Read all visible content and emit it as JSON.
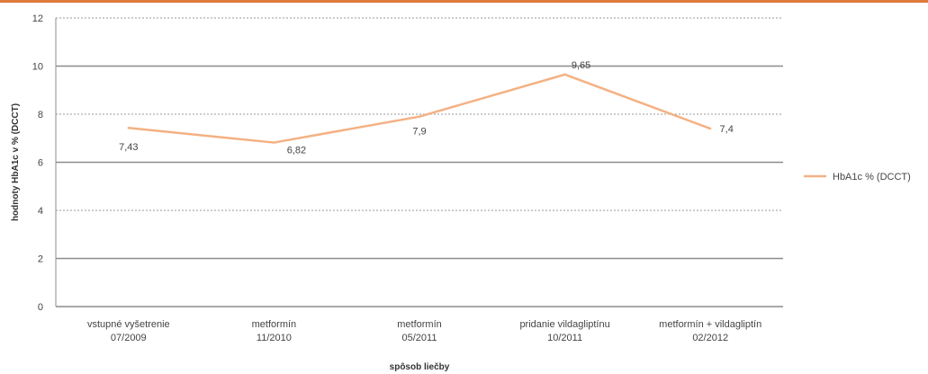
{
  "chart_data": {
    "type": "line",
    "categories": [
      [
        "vstupné vyšetrenie",
        "07/2009"
      ],
      [
        "metformín",
        "11/2010"
      ],
      [
        "metformín",
        "05/2011"
      ],
      [
        "pridanie vildagliptínu",
        "10/2011"
      ],
      [
        "metformín + vildagliptín",
        "02/2012"
      ]
    ],
    "series": [
      {
        "name": "HbA1c % (DCCT)",
        "values": [
          7.43,
          6.82,
          7.9,
          9.65,
          7.4
        ],
        "labels": [
          "7,43",
          "6,82",
          "7,9",
          "9,65",
          "7,4"
        ],
        "color": "#f4b183"
      }
    ],
    "xlabel": "spôsob liečby",
    "ylabel": "hodnoty HbA1c v % (DCCT)",
    "ylim": [
      0,
      12
    ],
    "yticks": [
      0,
      2,
      4,
      6,
      8,
      10,
      12
    ],
    "grid": true,
    "legend": "right",
    "accent_color": "#e07a3a"
  }
}
